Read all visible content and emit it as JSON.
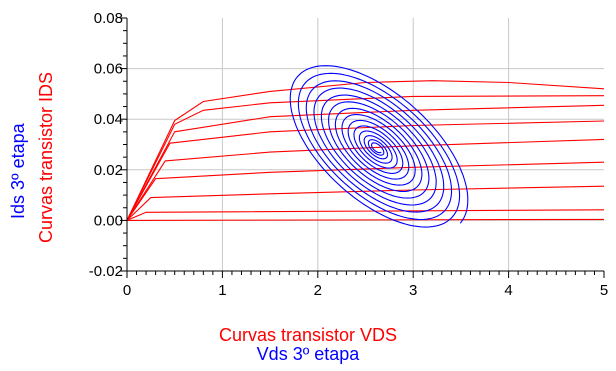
{
  "chart_data": {
    "type": "line",
    "xlabel": [
      "Curvas transistor VDS",
      "Vds 3º etapa"
    ],
    "ylabel": [
      "Curvas transistor IDS",
      "Ids 3º etapa"
    ],
    "xlim": [
      0,
      5
    ],
    "ylim": [
      -0.02,
      0.08
    ],
    "xticks": [
      "0",
      "1",
      "2",
      "3",
      "4",
      "5"
    ],
    "yticks": [
      "-0.02",
      "0.00",
      "0.02",
      "0.04",
      "0.06",
      "0.08"
    ],
    "grid": true,
    "colors": {
      "transistor_curves": "#ff0000",
      "stage_vds_ids": "#0000ff"
    },
    "series": [
      {
        "name": "Curvas transistor",
        "color": "#ff0000",
        "style": "family",
        "curves": [
          {
            "x": [
              0,
              0.5,
              0.8,
              1.5,
              2.5,
              3.2,
              4,
              5
            ],
            "y": [
              0,
              0.0395,
              0.047,
              0.051,
              0.0545,
              0.0552,
              0.0545,
              0.052
            ]
          },
          {
            "x": [
              0,
              0.5,
              0.8,
              1.5,
              3,
              5
            ],
            "y": [
              0,
              0.038,
              0.0435,
              0.0465,
              0.049,
              0.0493
            ]
          },
          {
            "x": [
              0,
              0.5,
              1.5,
              3,
              5
            ],
            "y": [
              0,
              0.035,
              0.041,
              0.0435,
              0.0455
            ]
          },
          {
            "x": [
              0,
              0.45,
              1.5,
              3,
              5
            ],
            "y": [
              0,
              0.0305,
              0.035,
              0.0375,
              0.0393
            ]
          },
          {
            "x": [
              0,
              0.4,
              1.5,
              3,
              5
            ],
            "y": [
              0,
              0.0235,
              0.027,
              0.0295,
              0.032
            ]
          },
          {
            "x": [
              0,
              0.3,
              1.5,
              3,
              5
            ],
            "y": [
              0,
              0.0165,
              0.019,
              0.021,
              0.023
            ]
          },
          {
            "x": [
              0,
              0.25,
              1.5,
              3,
              5
            ],
            "y": [
              0,
              0.009,
              0.0105,
              0.012,
              0.0135
            ]
          },
          {
            "x": [
              0,
              0.2,
              5
            ],
            "y": [
              0,
              0.0032,
              0.0042
            ]
          },
          {
            "x": [
              0,
              5
            ],
            "y": [
              0,
              0.0004
            ]
          }
        ]
      },
      {
        "name": "Vds 3º etapa / Ids 3º etapa",
        "color": "#0000ff",
        "style": "spiral",
        "center": [
          2.62,
          0.0285
        ],
        "outer_extent": {
          "x": [
            1.45,
            3.8
          ],
          "y": [
            -0.003,
            0.06
          ]
        },
        "loops": 14
      }
    ]
  }
}
